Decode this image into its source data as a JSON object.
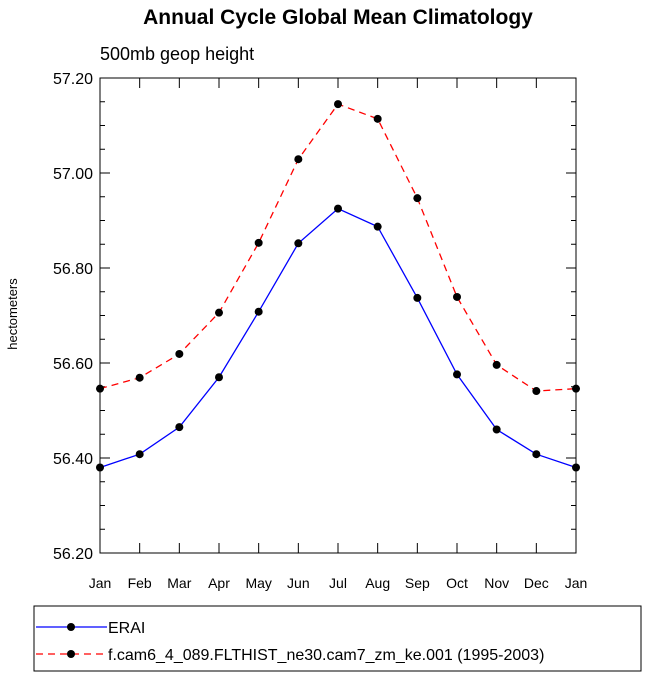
{
  "chart_data": {
    "type": "line",
    "title": "Annual Cycle Global Mean Climatology",
    "subtitle": "500mb geop height",
    "xlabel": "",
    "ylabel": "hectometers",
    "ylim": [
      56.2,
      57.2
    ],
    "yticks": [
      "56.20",
      "56.40",
      "56.60",
      "56.80",
      "57.00",
      "57.20"
    ],
    "categories": [
      "Jan",
      "Feb",
      "Mar",
      "Apr",
      "May",
      "Jun",
      "Jul",
      "Aug",
      "Sep",
      "Oct",
      "Nov",
      "Dec",
      "Jan"
    ],
    "series": [
      {
        "name": "ERAI",
        "color": "#0000ff",
        "dash": "solid",
        "values": [
          56.38,
          56.408,
          56.465,
          56.57,
          56.708,
          56.852,
          56.925,
          56.887,
          56.737,
          56.576,
          56.46,
          56.408,
          56.38
        ]
      },
      {
        "name": "f.cam6_4_089.FLTHIST_ne30.cam7_zm_ke.001 (1995-2003)",
        "color": "#ff0000",
        "dash": "dashed",
        "values": [
          56.546,
          56.569,
          56.619,
          56.706,
          56.853,
          57.029,
          57.145,
          57.114,
          56.947,
          56.739,
          56.596,
          56.541,
          56.546
        ]
      }
    ],
    "legend_position": "bottom"
  }
}
